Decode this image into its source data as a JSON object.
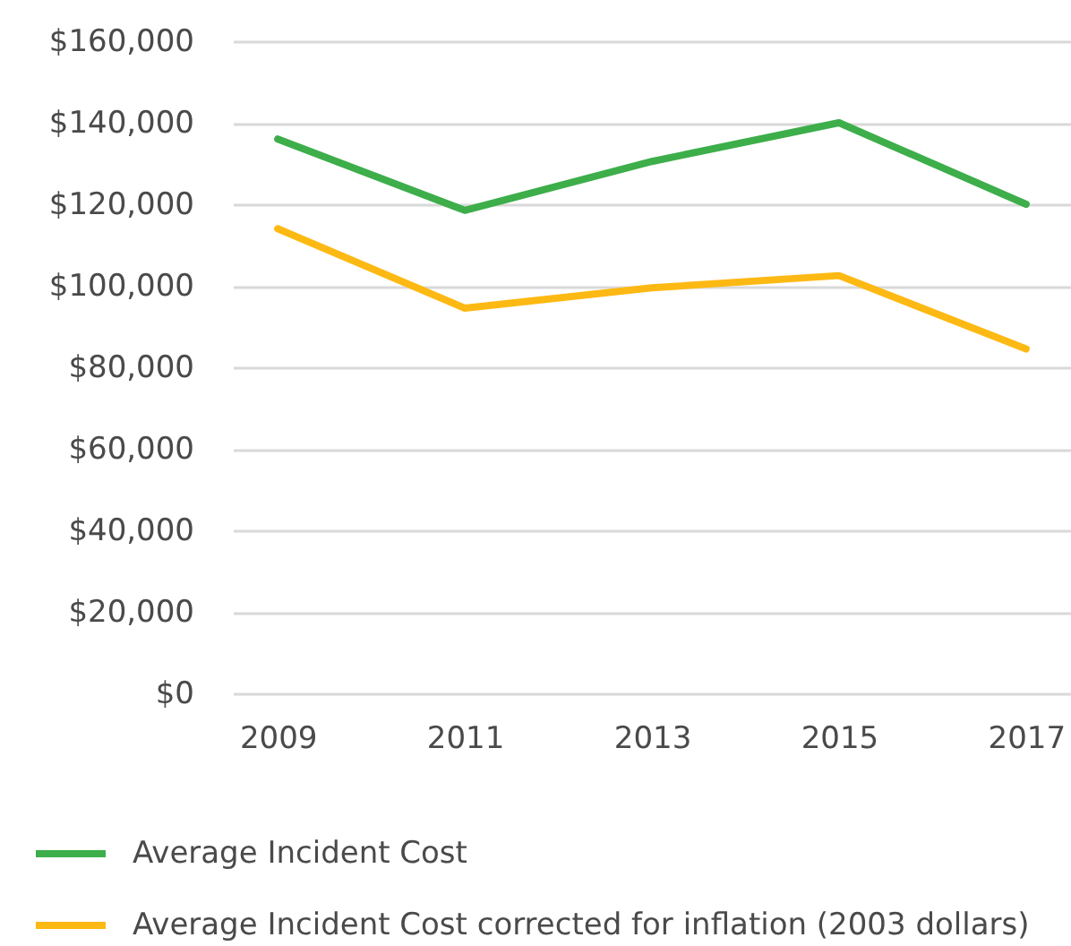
{
  "chart_data": {
    "type": "line",
    "categories": [
      "2009",
      "2011",
      "2013",
      "2015",
      "2017"
    ],
    "series": [
      {
        "name": "Average Incident Cost",
        "color": "#3dae4a",
        "values": [
          136000,
          118500,
          130500,
          140000,
          120000
        ]
      },
      {
        "name": "Average Incident Cost corrected for inflation (2003 dollars)",
        "color": "#fdb913",
        "values": [
          114000,
          94500,
          99500,
          102500,
          84500
        ]
      }
    ],
    "ylim": [
      0,
      160000
    ],
    "yticks": [
      {
        "value": 0,
        "label": "$0"
      },
      {
        "value": 20000,
        "label": "$20,000"
      },
      {
        "value": 40000,
        "label": "$40,000"
      },
      {
        "value": 60000,
        "label": "$60,000"
      },
      {
        "value": 80000,
        "label": "$80,000"
      },
      {
        "value": 100000,
        "label": "$100,000"
      },
      {
        "value": 120000,
        "label": "$120,000"
      },
      {
        "value": 140000,
        "label": "$140,000"
      },
      {
        "value": 160000,
        "label": "$160,000"
      }
    ],
    "grid": "y",
    "legend": "bottom left"
  }
}
